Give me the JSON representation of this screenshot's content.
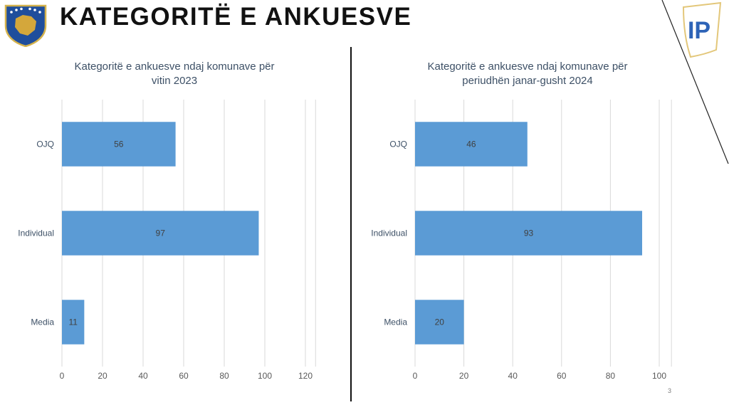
{
  "slide": {
    "title": "KATEGORITË E ANKUESVE",
    "page_number": "3",
    "logo_text": "IP"
  },
  "chart_data": [
    {
      "type": "bar",
      "orientation": "horizontal",
      "title_lines": [
        "Kategoritë e ankuesve ndaj komunave për",
        "vitin 2023"
      ],
      "categories": [
        "OJQ",
        "Individual",
        "Media"
      ],
      "values": [
        56,
        97,
        11
      ],
      "xlim": [
        0,
        125
      ],
      "xticks": [
        0,
        20,
        40,
        60,
        80,
        100,
        120
      ],
      "grid": true,
      "color": "#5b9bd5",
      "data_labels": true
    },
    {
      "type": "bar",
      "orientation": "horizontal",
      "title_lines": [
        "Kategoritë e ankuesve ndaj komunave për",
        "periudhën janar-gusht 2024"
      ],
      "categories": [
        "OJQ",
        "Individual",
        "Media"
      ],
      "values": [
        46,
        93,
        20
      ],
      "xlim": [
        0,
        105
      ],
      "xticks": [
        0,
        20,
        40,
        60,
        80,
        100
      ],
      "grid": true,
      "color": "#5b9bd5",
      "data_labels": true
    }
  ]
}
